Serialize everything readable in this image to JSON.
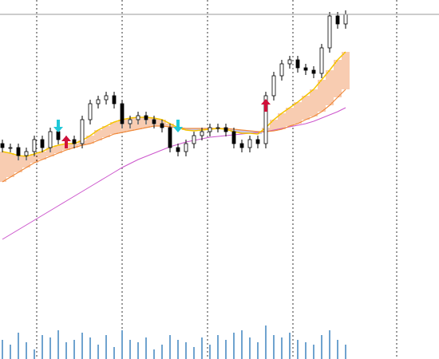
{
  "chart_data": {
    "type": "candlestick",
    "ylim": [
      0,
      450
    ],
    "volume_ylim": [
      0,
      100
    ],
    "up_color": "#ffffff",
    "down_color": "#000000",
    "open": [
      270,
      265,
      265,
      255,
      260,
      275,
      265,
      285,
      275,
      275,
      270,
      300,
      320,
      325,
      330,
      320,
      295,
      300,
      305,
      300,
      295,
      290,
      265,
      260,
      270,
      280,
      285,
      290,
      290,
      285,
      270,
      265,
      275,
      270,
      330,
      355,
      370,
      375,
      365,
      362,
      358,
      390,
      430,
      420
    ],
    "high": [
      275,
      270,
      270,
      265,
      280,
      280,
      290,
      290,
      280,
      280,
      305,
      325,
      330,
      335,
      335,
      325,
      305,
      310,
      310,
      305,
      300,
      295,
      270,
      275,
      285,
      290,
      295,
      295,
      295,
      290,
      275,
      280,
      280,
      335,
      360,
      375,
      380,
      380,
      370,
      367,
      395,
      435,
      435,
      437
    ],
    "low": [
      259,
      259,
      249,
      249,
      254,
      259,
      259,
      269,
      269,
      264,
      264,
      294,
      314,
      319,
      314,
      289,
      289,
      294,
      294,
      289,
      284,
      259,
      254,
      254,
      264,
      274,
      279,
      284,
      279,
      264,
      259,
      259,
      264,
      264,
      324,
      349,
      364,
      359,
      356,
      352,
      352,
      384,
      414,
      414
    ],
    "close": [
      265,
      265,
      255,
      260,
      275,
      265,
      285,
      275,
      275,
      270,
      300,
      320,
      325,
      330,
      320,
      295,
      300,
      305,
      300,
      295,
      290,
      265,
      260,
      270,
      280,
      285,
      290,
      290,
      285,
      270,
      265,
      275,
      270,
      330,
      355,
      370,
      375,
      365,
      362,
      358,
      390,
      430,
      420,
      432
    ],
    "ma_fast": [
      260,
      258,
      255,
      254,
      257,
      260,
      265,
      268,
      270,
      270,
      274,
      280,
      287,
      292,
      297,
      300,
      302,
      303,
      303,
      302,
      300,
      295,
      290,
      287,
      286,
      287,
      288,
      289,
      288,
      285,
      283,
      283,
      282,
      290,
      300,
      308,
      315,
      322,
      330,
      338,
      350,
      362,
      375,
      385
    ],
    "ma_mid": [
      222,
      228,
      234,
      240,
      246,
      250,
      254,
      258,
      262,
      265,
      268,
      270,
      274,
      278,
      282,
      284,
      286,
      288,
      290,
      292,
      292,
      291,
      290,
      289,
      289,
      289,
      289,
      289,
      289,
      288,
      287,
      286,
      285,
      285,
      286,
      288,
      292,
      295,
      300,
      304,
      310,
      318,
      328,
      338
    ],
    "ma_slow": [
      150,
      156,
      162,
      168,
      174,
      180,
      186,
      192,
      198,
      204,
      210,
      216,
      222,
      228,
      234,
      240,
      245,
      250,
      254,
      258,
      262,
      266,
      269,
      272,
      274,
      276,
      278,
      279,
      280,
      281,
      282,
      283,
      284,
      285,
      287,
      289,
      291,
      293,
      295,
      298,
      302,
      306,
      310,
      315
    ],
    "ma_fast_color": "#f5c400",
    "ma_mid_color": "#f08a3c",
    "ma_slow_color": "#cc55cc",
    "band_up_color": "#f29a63",
    "band_down_color": "#8c8cd8",
    "volume": [
      40,
      30,
      55,
      35,
      20,
      50,
      45,
      60,
      35,
      40,
      55,
      45,
      30,
      50,
      25,
      60,
      40,
      35,
      45,
      20,
      30,
      50,
      40,
      35,
      25,
      45,
      30,
      50,
      40,
      55,
      60,
      45,
      35,
      70,
      50,
      45,
      55,
      40,
      35,
      30,
      50,
      60,
      40,
      30
    ],
    "volume_color": "#6fa3cf",
    "price_line_color": "#999999",
    "arrows": [
      {
        "index": 7,
        "direction": "down",
        "value": 292,
        "color": "#20c8d8"
      },
      {
        "index": 8,
        "direction": "up",
        "value": 272,
        "color": "#d0103a"
      },
      {
        "index": 22,
        "direction": "down",
        "value": 292,
        "color": "#20c8d8"
      },
      {
        "index": 33,
        "direction": "up",
        "value": 318,
        "color": "#d0103a"
      }
    ]
  }
}
